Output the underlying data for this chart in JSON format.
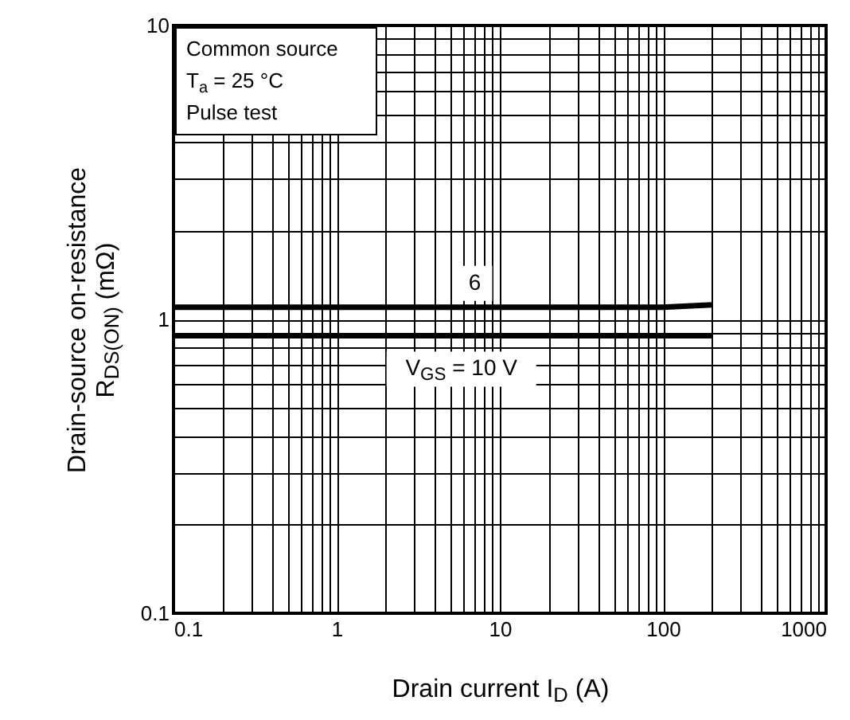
{
  "chart_data": {
    "type": "line",
    "xlabel": "Drain current    I$_{D}$    (A)",
    "ylabel": [
      "Drain-source on-resistance",
      "R$_{DS(ON)}$    (mΩ)"
    ],
    "annotations": [
      "Common source",
      "T$_{a}$ = 25 °C",
      "Pulse test"
    ],
    "log": "xy",
    "grid": true,
    "legend": false,
    "marker": "none",
    "line_style": "solid",
    "xlim": [
      0.1,
      1000
    ],
    "ylim": [
      0.1,
      10
    ],
    "xticks": [
      0.1,
      {
        "value": 0.2,
        "label": null
      },
      {
        "value": 0.3,
        "label": null
      },
      {
        "value": 0.4,
        "label": null
      },
      {
        "value": 0.5,
        "label": null
      },
      {
        "value": 0.6,
        "label": null
      },
      {
        "value": 0.7,
        "label": null
      },
      {
        "value": 0.8,
        "label": null
      },
      {
        "value": 0.9,
        "label": null
      },
      1,
      {
        "value": 2,
        "label": null
      },
      {
        "value": 3,
        "label": null
      },
      {
        "value": 4,
        "label": null
      },
      {
        "value": 5,
        "label": null
      },
      {
        "value": 6,
        "label": null
      },
      {
        "value": 7,
        "label": null
      },
      {
        "value": 8,
        "label": null
      },
      {
        "value": 9,
        "label": null
      },
      10,
      {
        "value": 20,
        "label": null
      },
      {
        "value": 30,
        "label": null
      },
      {
        "value": 40,
        "label": null
      },
      {
        "value": 50,
        "label": null
      },
      {
        "value": 60,
        "label": null
      },
      {
        "value": 70,
        "label": null
      },
      {
        "value": 80,
        "label": null
      },
      {
        "value": 90,
        "label": null
      },
      100,
      {
        "value": 200,
        "label": null
      },
      {
        "value": 300,
        "label": null
      },
      {
        "value": 400,
        "label": null
      },
      {
        "value": 500,
        "label": null
      },
      {
        "value": 600,
        "label": null
      },
      {
        "value": 700,
        "label": null
      },
      {
        "value": 800,
        "label": null
      },
      {
        "value": 900,
        "label": null
      },
      1000
    ],
    "yticks": [
      0.1,
      {
        "value": 0.2,
        "label": null
      },
      {
        "value": 0.3,
        "label": null
      },
      {
        "value": 0.4,
        "label": null
      },
      {
        "value": 0.5,
        "label": null
      },
      {
        "value": 0.6,
        "label": null
      },
      {
        "value": 0.7,
        "label": null
      },
      {
        "value": 0.8,
        "label": null
      },
      {
        "value": 0.9,
        "label": null
      },
      1,
      {
        "value": 2,
        "label": null
      },
      {
        "value": 3,
        "label": null
      },
      {
        "value": 4,
        "label": null
      },
      {
        "value": 5,
        "label": null
      },
      {
        "value": 6,
        "label": null
      },
      {
        "value": 7,
        "label": null
      },
      {
        "value": 8,
        "label": null
      },
      {
        "value": 9,
        "label": null
      },
      10
    ],
    "series": [
      {
        "name": "6",
        "color": "#000000",
        "x": [
          0.1,
          100,
          200
        ],
        "values": [
          1.1,
          1.1,
          1.12
        ]
      },
      {
        "name": "V$_{GS}$ = 10 V",
        "color": "#000000",
        "x": [
          0.1,
          200
        ],
        "values": [
          0.88,
          0.88
        ]
      }
    ]
  }
}
